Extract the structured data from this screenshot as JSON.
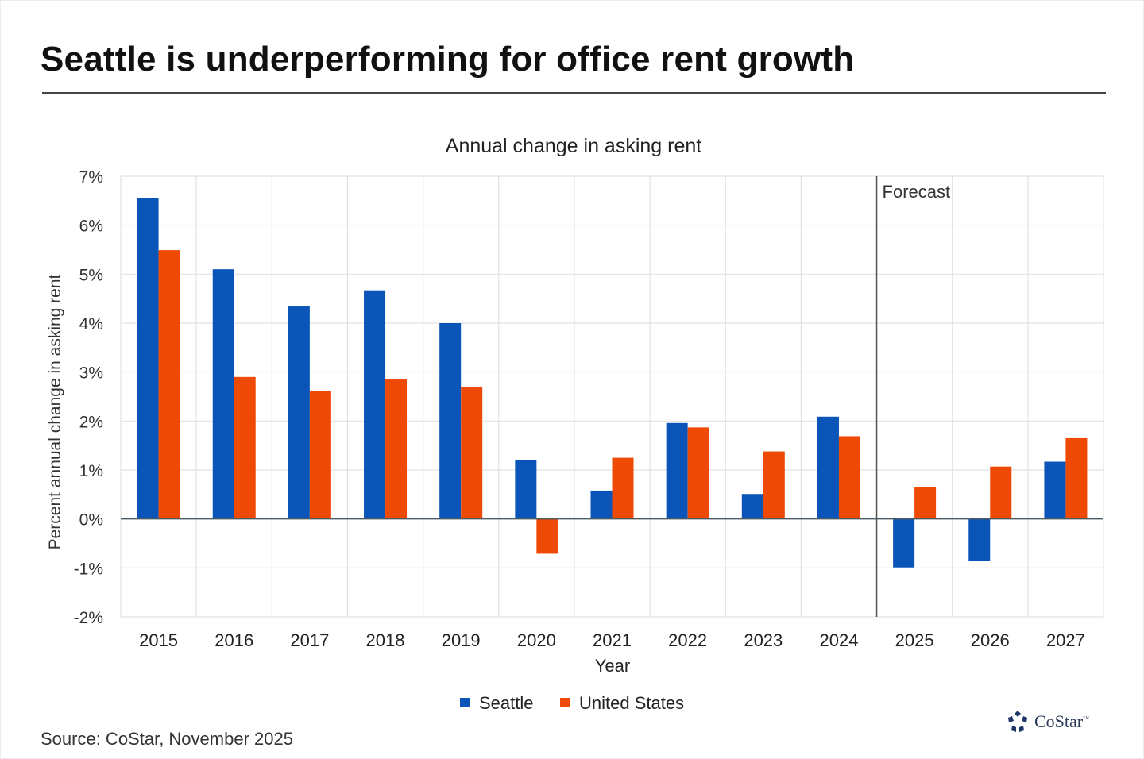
{
  "headline": "Seattle is underperforming for office rent growth",
  "source": "Source: CoStar, November 2025",
  "logo": {
    "text": "CoStar",
    "trademark": "™",
    "icon": "costar-star-icon"
  },
  "colors": {
    "seattle": "#0B55B8",
    "united_states": "#EE4A06",
    "grid": "#e2e2e2",
    "axis": "#4a5a60",
    "divider": "#555555"
  },
  "chart_data": {
    "type": "bar",
    "title": "Annual change in asking rent",
    "xlabel": "Year",
    "ylabel": "Percent annual change in asking rent",
    "ylim": [
      -2,
      7
    ],
    "yticks": [
      -2,
      -1,
      0,
      1,
      2,
      3,
      4,
      5,
      6,
      7
    ],
    "ytick_labels": [
      "-2%",
      "-1%",
      "0%",
      "1%",
      "2%",
      "3%",
      "4%",
      "5%",
      "6%",
      "7%"
    ],
    "grid": true,
    "legend_position": "bottom-center",
    "categories": [
      "2015",
      "2016",
      "2017",
      "2018",
      "2019",
      "2020",
      "2021",
      "2022",
      "2023",
      "2024",
      "2025",
      "2026",
      "2027"
    ],
    "series": [
      {
        "name": "Seattle",
        "color": "#0B55B8",
        "values": [
          6.55,
          5.1,
          4.34,
          4.67,
          4.0,
          1.2,
          0.58,
          1.96,
          0.51,
          2.09,
          -0.99,
          -0.86,
          1.17
        ]
      },
      {
        "name": "United States",
        "color": "#EE4A06",
        "values": [
          5.49,
          2.9,
          2.62,
          2.85,
          2.69,
          -0.71,
          1.25,
          1.87,
          1.38,
          1.69,
          0.65,
          1.07,
          1.65
        ]
      }
    ],
    "annotations": [
      {
        "type": "vertical-divider",
        "between": [
          "2024",
          "2025"
        ],
        "label": "Forecast"
      }
    ]
  }
}
